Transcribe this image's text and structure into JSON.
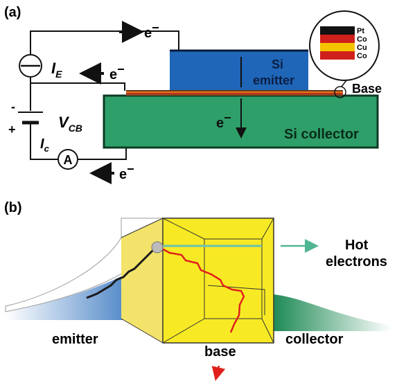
{
  "panel_a": {
    "label": "(a)",
    "electron_top": {
      "base": "e",
      "sup": "−"
    },
    "electron_mid": {
      "base": "e",
      "sup": "−"
    },
    "electron_bottom": {
      "base": "e",
      "sup": "−"
    },
    "electron_collector": {
      "base": "e",
      "sup": "−"
    },
    "emitter_current": {
      "symbol": "I",
      "subscript": "E"
    },
    "voltage": {
      "symbol": "V",
      "subscript": "CB"
    },
    "collector_current": {
      "symbol": "I",
      "subscript": "c"
    },
    "ammeter": "A",
    "minus": "-",
    "plus": "+",
    "emitter_label": [
      "Si",
      "emitter"
    ],
    "collector_label": "Si collector",
    "base_label": "Base",
    "layers": [
      "Pt",
      "Co",
      "Cu",
      "Co"
    ]
  },
  "panel_b": {
    "label": "(b)",
    "hot_electrons": [
      "Hot",
      "electrons"
    ],
    "emitter": "emitter",
    "base": "base",
    "collector": "collector"
  }
}
